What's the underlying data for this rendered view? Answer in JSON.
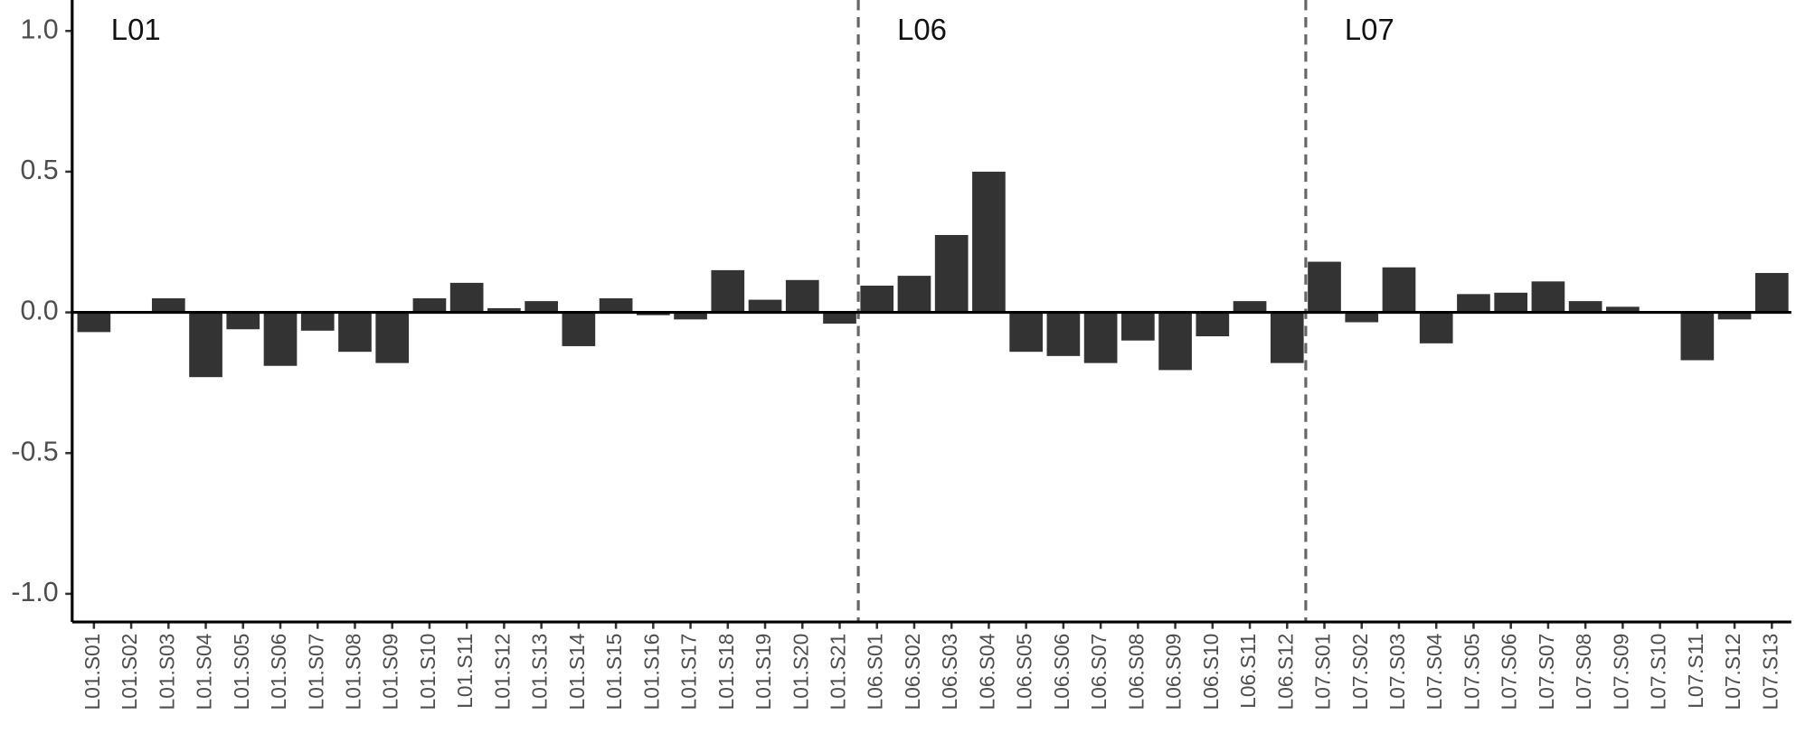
{
  "chart_data": {
    "type": "bar",
    "panels": [
      "L01",
      "L06",
      "L07"
    ],
    "categories": [
      "L01.S01",
      "L01.S02",
      "L01.S03",
      "L01.S04",
      "L01.S05",
      "L01.S06",
      "L01.S07",
      "L01.S08",
      "L01.S09",
      "L01.S10",
      "L01.S11",
      "L01.S12",
      "L01.S13",
      "L01.S14",
      "L01.S15",
      "L01.S16",
      "L01.S17",
      "L01.S18",
      "L01.S19",
      "L01.S20",
      "L01.S21",
      "L06.S01",
      "L06.S02",
      "L06.S03",
      "L06.S04",
      "L06.S05",
      "L06.S06",
      "L06.S07",
      "L06.S08",
      "L06.S09",
      "L06.S10",
      "L06.S11",
      "L06.S12",
      "L07.S01",
      "L07.S02",
      "L07.S03",
      "L07.S04",
      "L07.S05",
      "L07.S06",
      "L07.S07",
      "L07.S08",
      "L07.S09",
      "L07.S10",
      "L07.S11",
      "L07.S12",
      "L07.S13"
    ],
    "values": [
      -0.07,
      0,
      0.05,
      -0.23,
      -0.06,
      -0.19,
      -0.065,
      -0.14,
      -0.18,
      0.05,
      0.105,
      0.015,
      0.04,
      -0.12,
      0.05,
      -0.01,
      -0.025,
      0.15,
      0.045,
      0.115,
      -0.04,
      0.095,
      0.13,
      0.275,
      0.5,
      -0.14,
      -0.155,
      -0.18,
      -0.1,
      -0.205,
      -0.085,
      0.04,
      -0.18,
      0.18,
      -0.035,
      0.16,
      -0.11,
      0.065,
      0.07,
      0.11,
      0.04,
      0.02,
      0.005,
      -0.17,
      -0.025,
      0.14
    ],
    "color": "#333333",
    "ylim": [
      -1.1,
      1.11
    ],
    "yticks": [
      {
        "value": -1,
        "label": "-1.0"
      },
      {
        "value": -0.5,
        "label": "-0.5"
      },
      {
        "value": 0,
        "label": "0.0"
      },
      {
        "value": 0.5,
        "label": "0.5"
      },
      {
        "value": 1,
        "label": "1.0"
      }
    ],
    "grid": false
  }
}
